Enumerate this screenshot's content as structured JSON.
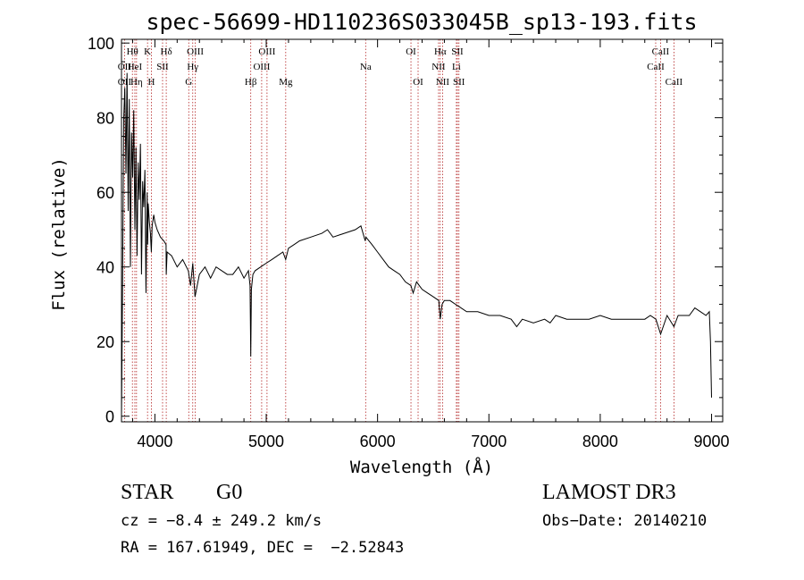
{
  "chart_data": {
    "type": "line",
    "title": "spec-56699-HD110236S033045B_sp13-193.fits",
    "xlabel": "Wavelength (Å)",
    "ylabel": "Flux (relative)",
    "xlim": [
      3700,
      9100
    ],
    "ylim": [
      -1.5,
      101
    ],
    "xticks": [
      4000,
      5000,
      6000,
      7000,
      8000,
      9000
    ],
    "yticks": [
      0,
      20,
      40,
      60,
      80,
      100
    ],
    "grid": false,
    "line_color": "#000000",
    "marker_color": "#b22222",
    "spectrum": {
      "x": [
        3700,
        3710,
        3720,
        3730,
        3740,
        3750,
        3760,
        3770,
        3780,
        3790,
        3800,
        3810,
        3820,
        3830,
        3840,
        3850,
        3860,
        3870,
        3880,
        3890,
        3900,
        3910,
        3920,
        3930,
        3935,
        3940,
        3950,
        3960,
        3968,
        3975,
        3990,
        4000,
        4020,
        4050,
        4080,
        4100,
        4102,
        4110,
        4150,
        4200,
        4250,
        4300,
        4320,
        4340,
        4360,
        4400,
        4450,
        4500,
        4550,
        4600,
        4650,
        4700,
        4750,
        4800,
        4840,
        4855,
        4861,
        4867,
        4880,
        4900,
        4950,
        5000,
        5050,
        5100,
        5150,
        5175,
        5200,
        5250,
        5300,
        5400,
        5500,
        5550,
        5600,
        5700,
        5800,
        5850,
        5889,
        5895,
        5950,
        6000,
        6050,
        6100,
        6150,
        6200,
        6250,
        6300,
        6320,
        6350,
        6400,
        6450,
        6500,
        6550,
        6563,
        6580,
        6600,
        6650,
        6700,
        6750,
        6800,
        6900,
        7000,
        7100,
        7200,
        7250,
        7300,
        7400,
        7500,
        7550,
        7600,
        7700,
        7800,
        7900,
        8000,
        8100,
        8200,
        8300,
        8400,
        8450,
        8500,
        8542,
        8600,
        8662,
        8700,
        8800,
        8850,
        8900,
        8950,
        8980,
        8990,
        9000
      ],
      "y": [
        0,
        35,
        80,
        88,
        65,
        92,
        55,
        85,
        40,
        76,
        64,
        82,
        50,
        72,
        43,
        68,
        58,
        73,
        38,
        63,
        56,
        66,
        33,
        60,
        46,
        57,
        52,
        49,
        44,
        51,
        54,
        52,
        50,
        48,
        47,
        46,
        38,
        44,
        43,
        40,
        42,
        39,
        35,
        41,
        32,
        38,
        40,
        37,
        40,
        39,
        38,
        38,
        40,
        37,
        39,
        35,
        16,
        34,
        38,
        39,
        40,
        41,
        42,
        43,
        44,
        42,
        45,
        46,
        47,
        48,
        49,
        50,
        48,
        49,
        50,
        51,
        47,
        48,
        46,
        44,
        42,
        40,
        39,
        38,
        36,
        35,
        33,
        36,
        34,
        33,
        32,
        31,
        26,
        30,
        31,
        31,
        30,
        29,
        28,
        28,
        27,
        27,
        26,
        24,
        26,
        25,
        26,
        25,
        27,
        26,
        26,
        26,
        27,
        26,
        26,
        26,
        26,
        27,
        26,
        22,
        27,
        24,
        27,
        27,
        29,
        28,
        27,
        28,
        20,
        5
      ]
    },
    "lines": [
      {
        "name": "OII",
        "x": 3727,
        "row": 1
      },
      {
        "name": "OII",
        "x": 3727,
        "row": 2
      },
      {
        "name": "Hθ",
        "x": 3798,
        "row": 0
      },
      {
        "name": "HeI",
        "x": 3820,
        "row": 1
      },
      {
        "name": "Hη",
        "x": 3835,
        "row": 2
      },
      {
        "name": "K",
        "x": 3934,
        "row": 0
      },
      {
        "name": "SII",
        "x": 4069,
        "row": 1
      },
      {
        "name": "H",
        "x": 3969,
        "row": 2
      },
      {
        "name": "Hδ",
        "x": 4102,
        "row": 0
      },
      {
        "name": "OIII",
        "x": 4363,
        "row": 0
      },
      {
        "name": "Hγ",
        "x": 4340,
        "row": 1
      },
      {
        "name": "G",
        "x": 4304,
        "row": 2
      },
      {
        "name": "Hβ",
        "x": 4861,
        "row": 2
      },
      {
        "name": "OIII",
        "x": 5007,
        "row": 0
      },
      {
        "name": "OIII",
        "x": 4959,
        "row": 1
      },
      {
        "name": "Mg",
        "x": 5175,
        "row": 2
      },
      {
        "name": "Na",
        "x": 5893,
        "row": 1
      },
      {
        "name": "OI",
        "x": 6300,
        "row": 0
      },
      {
        "name": "OI",
        "x": 6364,
        "row": 2
      },
      {
        "name": "Hα",
        "x": 6563,
        "row": 0
      },
      {
        "name": "NII",
        "x": 6548,
        "row": 1
      },
      {
        "name": "NII",
        "x": 6584,
        "row": 2
      },
      {
        "name": "SII",
        "x": 6717,
        "row": 0
      },
      {
        "name": "Li",
        "x": 6708,
        "row": 1
      },
      {
        "name": "SII",
        "x": 6731,
        "row": 2
      },
      {
        "name": "CaII",
        "x": 8542,
        "row": 0
      },
      {
        "name": "CaII",
        "x": 8498,
        "row": 1
      },
      {
        "name": "CaII",
        "x": 8662,
        "row": 2
      }
    ]
  },
  "info": {
    "object_class": "STAR",
    "subclass": "G0",
    "survey": "LAMOST DR3",
    "velocity": "cz = −8.4 ± 249.2 km/s",
    "obs_date": "Obs−Date: 20140210",
    "coords": "RA = 167.61949, DEC =  −2.52843"
  }
}
